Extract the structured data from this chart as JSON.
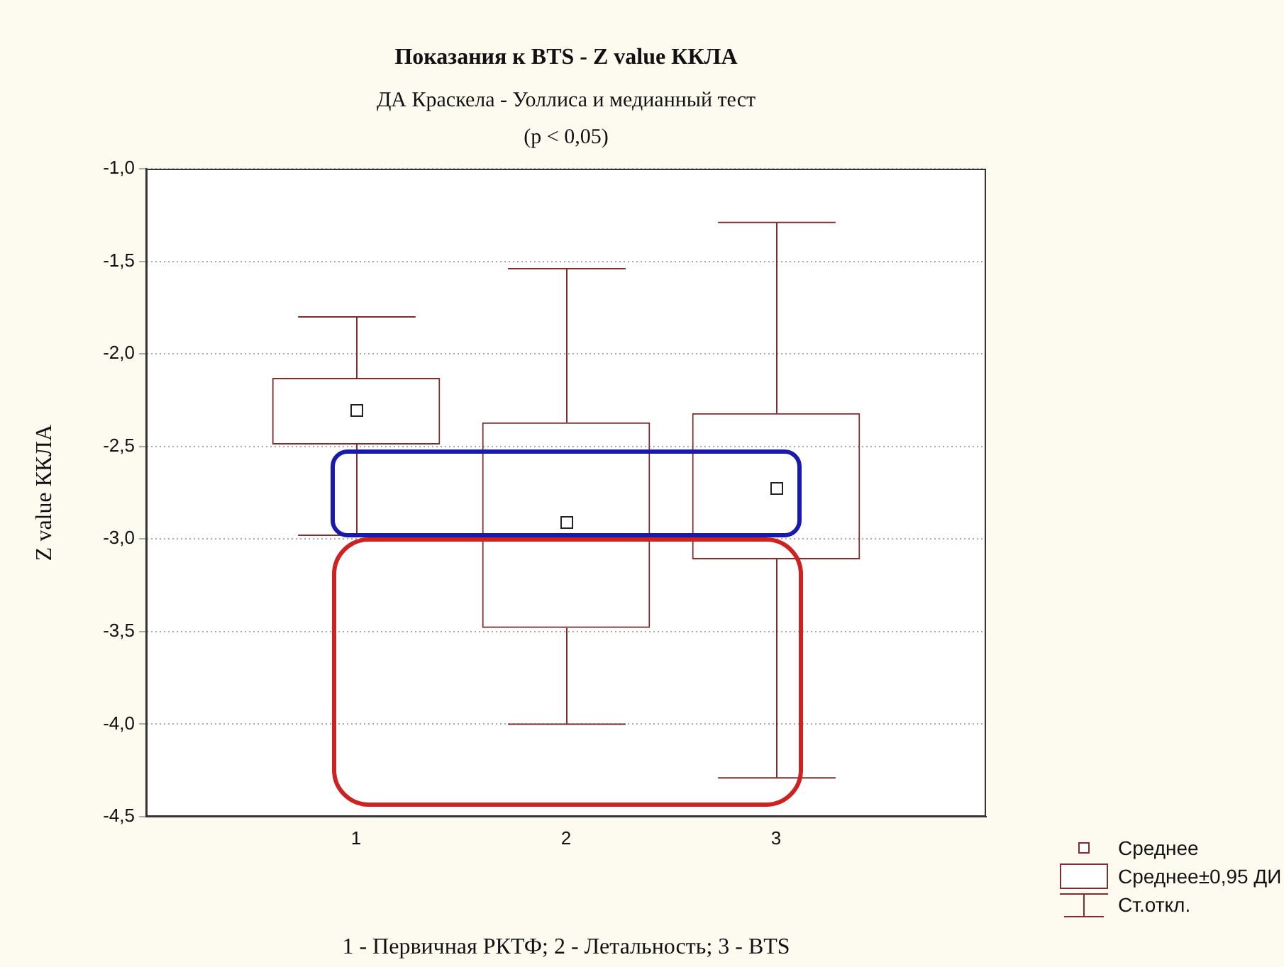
{
  "chart_data": {
    "type": "box",
    "title": "Показания к BTS - Z value ККЛА",
    "subtitle": "ДА Краскела - Уоллиса и медианный тест\n(p < 0,05)",
    "xlabel": "1 - Первичная РКТФ; 2 - Летальность; 3 - BTS",
    "ylabel": "Z value ККЛА",
    "categories": [
      null,
      "1",
      "2",
      "3",
      null
    ],
    "color": "#7d2f2f",
    "boxes": [
      null,
      {
        "low": -2.98,
        "q1": -2.49,
        "median": -2.3,
        "q3": -2.13,
        "high": -1.8
      },
      {
        "low": -4.0,
        "q1": -3.48,
        "median": -2.91,
        "q3": -2.37,
        "high": -1.54
      },
      {
        "low": -4.29,
        "q1": -3.11,
        "median": -2.72,
        "q3": -2.32,
        "high": -1.29
      },
      null
    ],
    "ylim": [
      -4.5,
      -1.0
    ],
    "yticks": [
      {
        "value": -1.0,
        "label": "-1,0"
      },
      {
        "value": -1.5,
        "label": "-1,5"
      },
      {
        "value": -2.0,
        "label": "-2,0"
      },
      {
        "value": -2.5,
        "label": "-2,5"
      },
      {
        "value": -3.0,
        "label": "-3,0"
      },
      {
        "value": -3.5,
        "label": "-3,5"
      },
      {
        "value": -4.0,
        "label": "-4,0"
      },
      {
        "value": -4.5,
        "label": "-4,5"
      }
    ],
    "grid": "y",
    "annotations": [
      "Среднее",
      "Среднее±0,95 ДИ",
      "Ст.откл."
    ]
  }
}
